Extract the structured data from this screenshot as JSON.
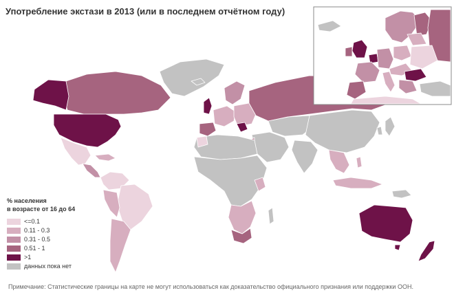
{
  "title": "Употребление экстази в 2013 (или в последнем отчётном году)",
  "legend": {
    "heading_line1": "% населения",
    "heading_line2": "в возрасте от 16 до 64",
    "items": [
      {
        "label": "<=0.1",
        "color": "#ecd4de"
      },
      {
        "label": "0.11 - 0.3",
        "color": "#d7aebf"
      },
      {
        "label": "0.31 - 0.5",
        "color": "#c290a6"
      },
      {
        "label": "0.51 - 1",
        "color": "#a6647f"
      },
      {
        "label": ">1",
        "color": "#6e1248"
      },
      {
        "label": "данных пока нет",
        "color": "#c2c2c2"
      }
    ]
  },
  "note": "Примечание: Статистические границы на карте не могут использоваться как доказательство официального признания или поддержки ООН.",
  "colors": {
    "no_data": "#c2c2c2",
    "border": "#ffffff",
    "inset_frame": "#888888"
  }
}
